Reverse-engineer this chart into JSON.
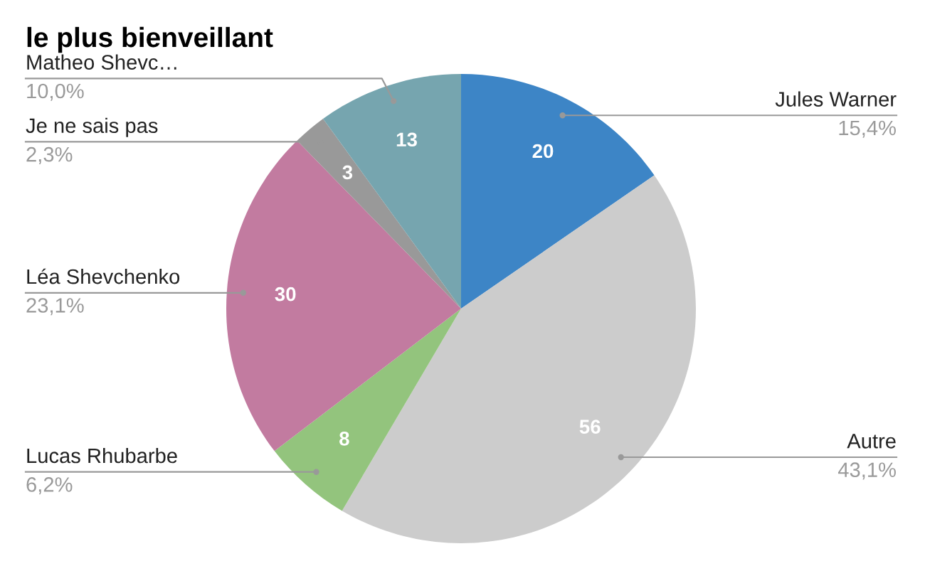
{
  "chart_data": {
    "type": "pie",
    "title": "le plus bienveillant",
    "categories": [
      "Jules Warner",
      "Autre",
      "Lucas Rhubarbe",
      "Léa Shevchenko",
      "Je ne sais pas",
      "Matheo Shevc…"
    ],
    "values": [
      20,
      56,
      8,
      30,
      3,
      13
    ],
    "colors": [
      "#3d85c6",
      "#cccccc",
      "#93c47d",
      "#c27ba0",
      "#999999",
      "#76a5af"
    ],
    "data_labels": true,
    "annotations": [
      {
        "text": "15,4%",
        "x": "Jules Warner"
      },
      {
        "text": "43,1%",
        "x": "Autre"
      },
      {
        "text": "6,2%",
        "x": "Lucas Rhubarbe"
      },
      {
        "text": "23,1%",
        "x": "Léa Shevchenko"
      },
      {
        "text": "2,3%",
        "x": "Je ne sais pas"
      },
      {
        "text": "10,0%",
        "x": "Matheo Shevc…"
      }
    ],
    "legend": false
  }
}
